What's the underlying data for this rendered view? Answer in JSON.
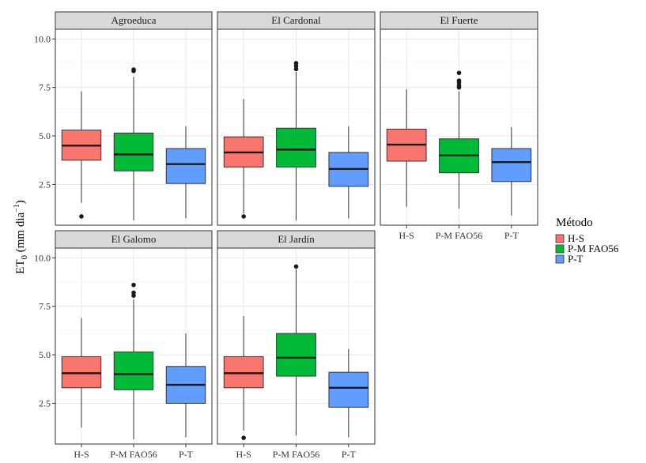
{
  "chart_data": {
    "type": "boxplot",
    "ylabel": "ET0 (mm dia-1)",
    "ylabel_parts": {
      "base": "ET",
      "sub": "0",
      "mid": " (mm dia",
      "sup": "−1",
      "end": ")"
    },
    "yticks": [
      2.5,
      5.0,
      7.5,
      10.0
    ],
    "ytick_labels": [
      "2.5",
      "5.0",
      "7.5",
      "10.0"
    ],
    "ylim": [
      0.4,
      10.5
    ],
    "categories": [
      "H-S",
      "P-M FAO56",
      "P-T"
    ],
    "colors": [
      "#F8766D",
      "#00BA38",
      "#619CFF"
    ],
    "grid": true,
    "legend": {
      "title": "Método",
      "position": "right",
      "entries": [
        "H-S",
        "P-M FAO56",
        "P-T"
      ]
    },
    "facets": [
      {
        "name": "Agroeduca",
        "boxes": [
          {
            "category": "H-S",
            "min": 1.55,
            "q1": 3.75,
            "median": 4.5,
            "q3": 5.3,
            "max": 7.3,
            "outliers": [
              0.85
            ]
          },
          {
            "category": "P-M FAO56",
            "min": 0.65,
            "q1": 3.2,
            "median": 4.05,
            "q3": 5.15,
            "max": 8.05,
            "outliers": [
              8.35,
              8.42
            ]
          },
          {
            "category": "P-T",
            "min": 0.75,
            "q1": 2.55,
            "median": 3.55,
            "q3": 4.35,
            "max": 5.5,
            "outliers": []
          }
        ]
      },
      {
        "name": "El Cardonal",
        "boxes": [
          {
            "category": "H-S",
            "min": 1.0,
            "q1": 3.4,
            "median": 4.15,
            "q3": 4.95,
            "max": 6.9,
            "outliers": [
              0.85
            ]
          },
          {
            "category": "P-M FAO56",
            "min": 0.65,
            "q1": 3.4,
            "median": 4.3,
            "q3": 5.4,
            "max": 8.3,
            "outliers": [
              8.45,
              8.6,
              8.75
            ]
          },
          {
            "category": "P-T",
            "min": 0.75,
            "q1": 2.4,
            "median": 3.3,
            "q3": 4.15,
            "max": 5.5,
            "outliers": []
          }
        ]
      },
      {
        "name": "El Fuerte",
        "boxes": [
          {
            "category": "H-S",
            "min": 1.35,
            "q1": 3.7,
            "median": 4.55,
            "q3": 5.35,
            "max": 7.4,
            "outliers": []
          },
          {
            "category": "P-M FAO56",
            "min": 1.25,
            "q1": 3.1,
            "median": 4.0,
            "q3": 4.85,
            "max": 7.3,
            "outliers": [
              7.5,
              7.6,
              7.75,
              7.85,
              8.25
            ]
          },
          {
            "category": "P-T",
            "min": 0.9,
            "q1": 2.65,
            "median": 3.65,
            "q3": 4.35,
            "max": 5.45,
            "outliers": []
          }
        ]
      },
      {
        "name": "El Galomo",
        "boxes": [
          {
            "category": "H-S",
            "min": 1.25,
            "q1": 3.3,
            "median": 4.05,
            "q3": 4.9,
            "max": 6.9,
            "outliers": []
          },
          {
            "category": "P-M FAO56",
            "min": 0.65,
            "q1": 3.2,
            "median": 4.0,
            "q3": 5.15,
            "max": 7.85,
            "outliers": [
              8.05,
              8.2,
              8.6
            ]
          },
          {
            "category": "P-T",
            "min": 0.75,
            "q1": 2.5,
            "median": 3.45,
            "q3": 4.4,
            "max": 6.1,
            "outliers": []
          }
        ]
      },
      {
        "name": "El Jardín",
        "boxes": [
          {
            "category": "H-S",
            "min": 1.1,
            "q1": 3.3,
            "median": 4.05,
            "q3": 4.9,
            "max": 7.0,
            "outliers": [
              0.72
            ]
          },
          {
            "category": "P-M FAO56",
            "min": 0.85,
            "q1": 3.9,
            "median": 4.85,
            "q3": 6.1,
            "max": 9.4,
            "outliers": [
              9.55
            ]
          },
          {
            "category": "P-T",
            "min": 0.75,
            "q1": 2.3,
            "median": 3.3,
            "q3": 4.1,
            "max": 5.3,
            "outliers": []
          }
        ]
      }
    ]
  }
}
